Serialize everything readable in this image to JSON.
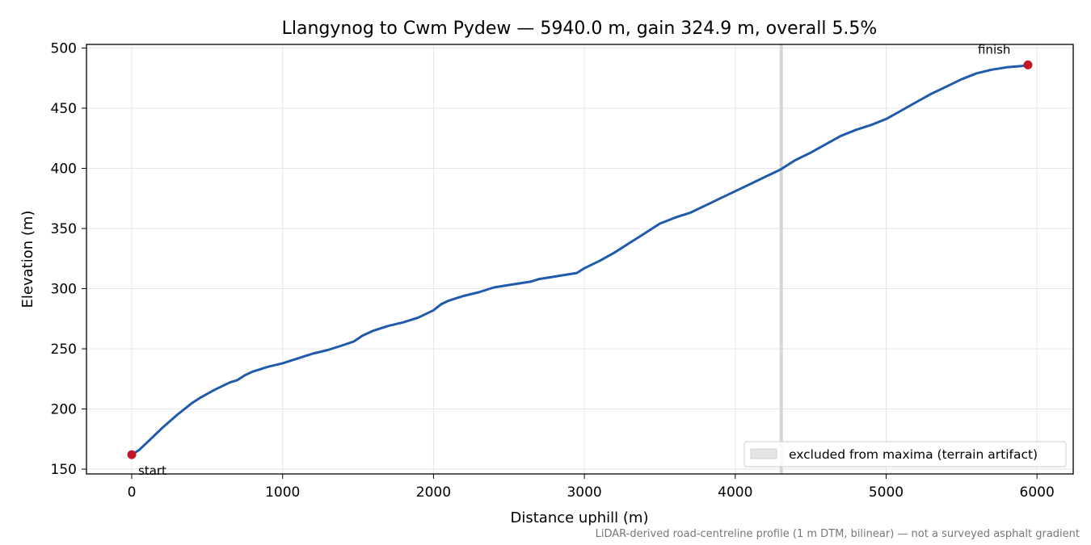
{
  "chart_data": {
    "type": "line",
    "title": "Llangynog to Cwm Pydew — 5940.0 m, gain 324.9 m, overall 5.5%",
    "xlabel": "Distance uphill (m)",
    "ylabel": "Elevation (m)",
    "xlim": [
      -300,
      6240
    ],
    "ylim": [
      146,
      503
    ],
    "xticks": [
      0,
      1000,
      2000,
      3000,
      4000,
      5000,
      6000
    ],
    "yticks": [
      150,
      200,
      250,
      300,
      350,
      400,
      450,
      500
    ],
    "grid": true,
    "legend_position": "bottom-right",
    "series": [
      {
        "x": [
          0,
          50,
          100,
          200,
          300,
          400,
          450,
          550,
          650,
          700,
          750,
          800,
          850,
          900,
          1000,
          1100,
          1200,
          1300,
          1400,
          1470,
          1530,
          1600,
          1700,
          1800,
          1900,
          2000,
          2050,
          2100,
          2150,
          2200,
          2300,
          2400,
          2500,
          2650,
          2700,
          2800,
          2900,
          2950,
          3000,
          3100,
          3200,
          3250,
          3300,
          3400,
          3500,
          3600,
          3700,
          3800,
          3900,
          4000,
          4100,
          4200,
          4300,
          4350,
          4400,
          4500,
          4600,
          4700,
          4800,
          4900,
          5000,
          5100,
          5200,
          5300,
          5400,
          5500,
          5600,
          5700,
          5800,
          5900,
          5940
        ],
        "y": [
          162,
          166,
          172,
          184,
          195,
          205,
          209,
          216,
          222,
          224,
          228,
          231,
          233,
          235,
          238,
          242,
          246,
          249,
          253,
          256,
          261,
          265,
          269,
          272,
          276,
          282,
          287,
          290,
          292,
          294,
          297,
          301,
          303,
          306,
          308,
          310,
          312,
          313,
          317,
          323,
          330,
          334,
          338,
          346,
          354,
          359,
          363,
          369,
          375,
          381,
          387,
          393,
          399,
          403,
          407,
          413,
          420,
          427,
          432,
          436,
          441,
          448,
          455,
          462,
          468,
          474,
          479,
          482,
          484,
          485,
          486
        ]
      }
    ],
    "excluded_x": 4305,
    "markers": [
      {
        "x": 0,
        "y": 162,
        "label": "start"
      },
      {
        "x": 5940,
        "y": 486,
        "label": "finish"
      }
    ],
    "legend": [
      {
        "label": "excluded from maxima (terrain artifact)"
      }
    ],
    "colors": {
      "line": "#1f5aab",
      "marker": "#c0172b",
      "excluded": "#cccccc",
      "grid": "#e6e6e6"
    }
  },
  "footnote": "LiDAR-derived road-centreline profile (1 m DTM, bilinear) — not a surveyed asphalt gradient"
}
